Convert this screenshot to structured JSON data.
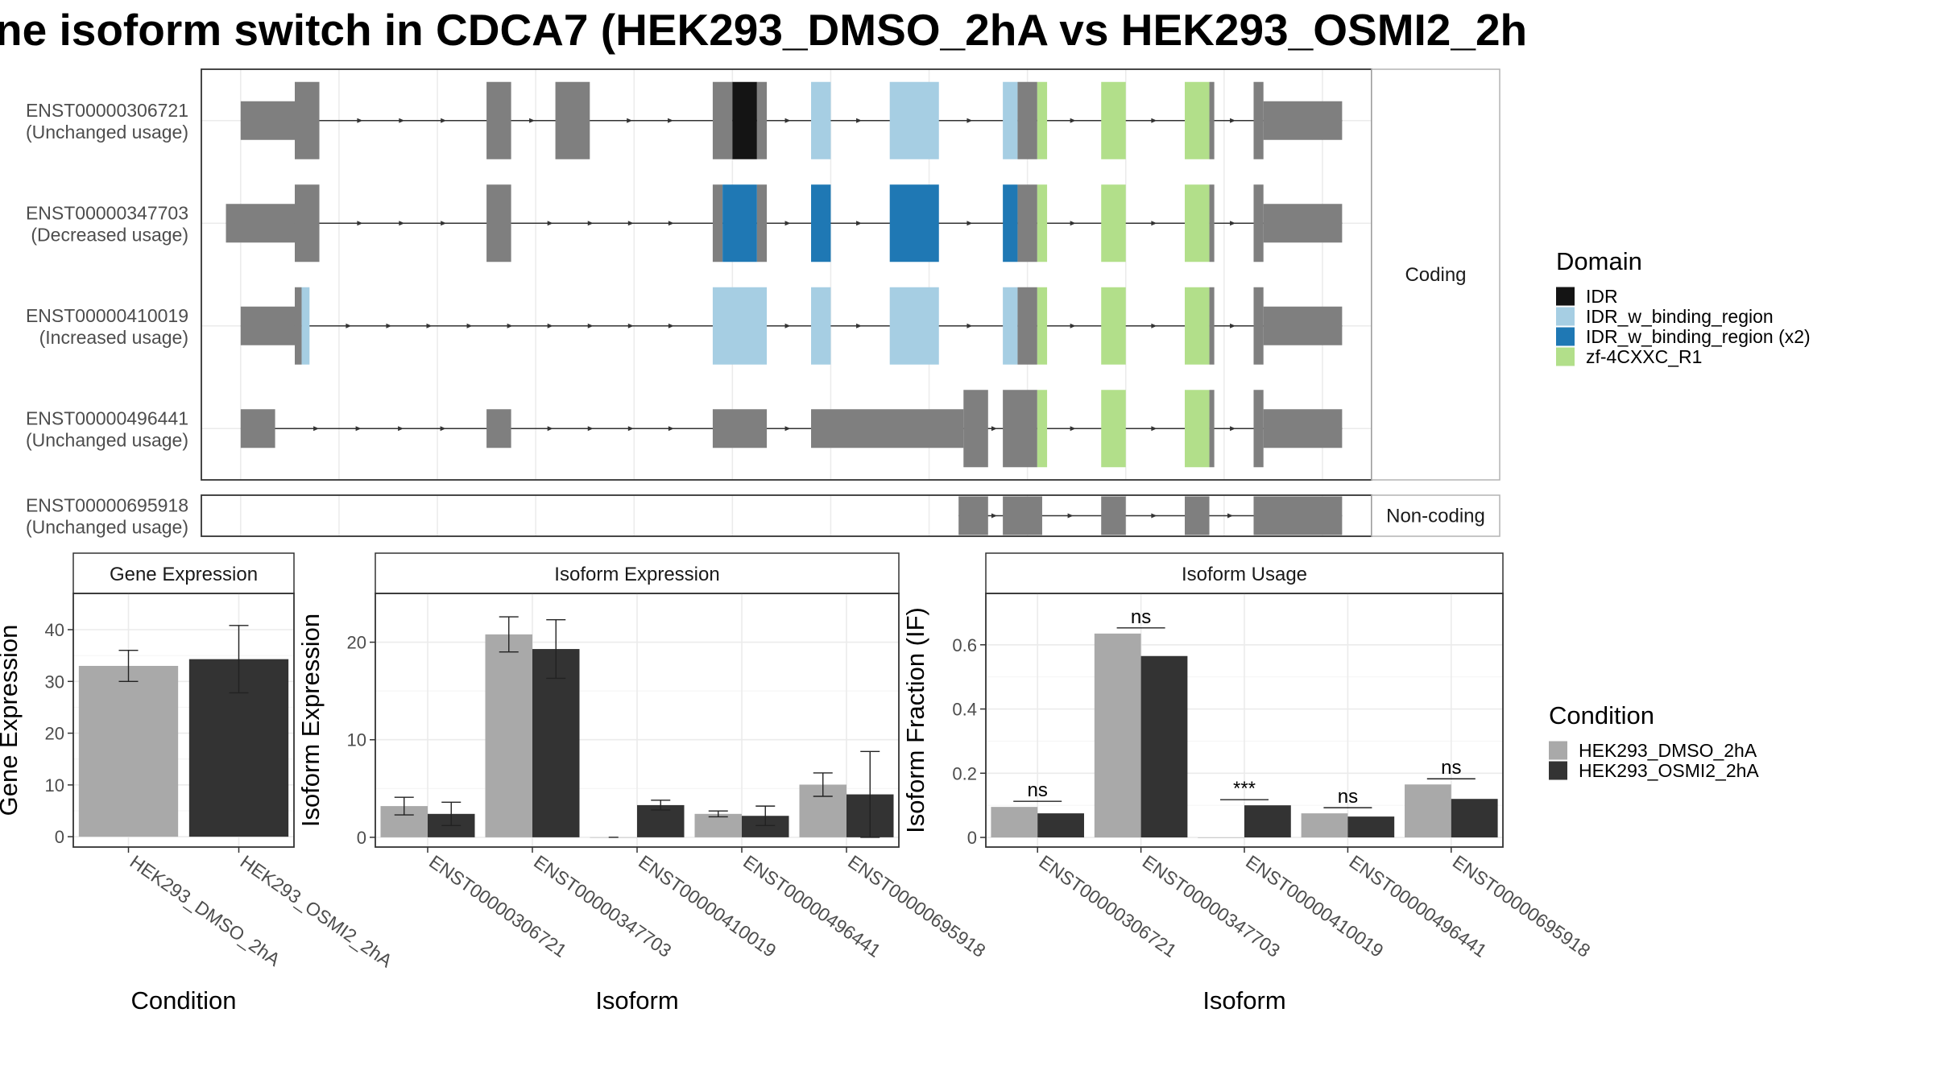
{
  "title": "ne isoform switch in CDCA7 (HEK293_DMSO_2hA vs HEK293_OSMI2_2h",
  "structure": {
    "coding_label": "Coding",
    "noncoding_label": "Non-coding",
    "transcripts": [
      {
        "id": "ENST00000306721",
        "usage": "(Unchanged usage)",
        "group": "coding",
        "exons": [
          {
            "s": 1.0,
            "e": 1.55,
            "thick": false
          },
          {
            "s": 1.55,
            "e": 1.8,
            "thick": true
          },
          {
            "s": 3.5,
            "e": 3.75,
            "thick": true
          },
          {
            "s": 4.2,
            "e": 4.55,
            "thick": true
          },
          {
            "s": 5.8,
            "e": 6.0,
            "thick": true,
            "domain": null
          },
          {
            "s": 6.0,
            "e": 6.25,
            "thick": true,
            "domain": "IDR"
          },
          {
            "s": 6.25,
            "e": 6.35,
            "thick": true
          },
          {
            "s": 6.8,
            "e": 7.0,
            "thick": true,
            "domain": "IDR_w_binding_region"
          },
          {
            "s": 7.6,
            "e": 8.1,
            "thick": true,
            "domain": "IDR_w_binding_region"
          },
          {
            "s": 8.75,
            "e": 8.9,
            "thick": true,
            "domain": "IDR_w_binding_region"
          },
          {
            "s": 8.9,
            "e": 9.1,
            "thick": true
          },
          {
            "s": 9.1,
            "e": 9.2,
            "thick": true,
            "domain": "zf-4CXXC_R1"
          },
          {
            "s": 9.75,
            "e": 10.0,
            "thick": true,
            "domain": "zf-4CXXC_R1"
          },
          {
            "s": 10.6,
            "e": 10.85,
            "thick": true,
            "domain": "zf-4CXXC_R1"
          },
          {
            "s": 10.85,
            "e": 10.9,
            "thick": true
          },
          {
            "s": 11.3,
            "e": 11.4,
            "thick": true
          },
          {
            "s": 11.4,
            "e": 12.2,
            "thick": false
          }
        ]
      },
      {
        "id": "ENST00000347703",
        "usage": "(Decreased usage)",
        "group": "coding",
        "exons": [
          {
            "s": 0.85,
            "e": 1.55,
            "thick": false
          },
          {
            "s": 1.55,
            "e": 1.8,
            "thick": true
          },
          {
            "s": 3.5,
            "e": 3.75,
            "thick": true
          },
          {
            "s": 5.8,
            "e": 5.9,
            "thick": true
          },
          {
            "s": 5.9,
            "e": 6.25,
            "thick": true,
            "domain": "IDR_w_binding_region (x2)"
          },
          {
            "s": 6.25,
            "e": 6.35,
            "thick": true
          },
          {
            "s": 6.8,
            "e": 7.0,
            "thick": true,
            "domain": "IDR_w_binding_region (x2)"
          },
          {
            "s": 7.6,
            "e": 8.1,
            "thick": true,
            "domain": "IDR_w_binding_region (x2)"
          },
          {
            "s": 8.75,
            "e": 8.9,
            "thick": true,
            "domain": "IDR_w_binding_region (x2)"
          },
          {
            "s": 8.9,
            "e": 9.1,
            "thick": true
          },
          {
            "s": 9.1,
            "e": 9.2,
            "thick": true,
            "domain": "zf-4CXXC_R1"
          },
          {
            "s": 9.75,
            "e": 10.0,
            "thick": true,
            "domain": "zf-4CXXC_R1"
          },
          {
            "s": 10.6,
            "e": 10.85,
            "thick": true,
            "domain": "zf-4CXXC_R1"
          },
          {
            "s": 10.85,
            "e": 10.9,
            "thick": true
          },
          {
            "s": 11.3,
            "e": 11.4,
            "thick": true
          },
          {
            "s": 11.4,
            "e": 12.2,
            "thick": false
          }
        ]
      },
      {
        "id": "ENST00000410019",
        "usage": "(Increased usage)",
        "group": "coding",
        "exons": [
          {
            "s": 1.0,
            "e": 1.55,
            "thick": false
          },
          {
            "s": 1.55,
            "e": 1.62,
            "thick": true
          },
          {
            "s": 1.62,
            "e": 1.7,
            "thick": true,
            "domain": "IDR_w_binding_region"
          },
          {
            "s": 5.8,
            "e": 6.35,
            "thick": true,
            "domain": "IDR_w_binding_region"
          },
          {
            "s": 6.8,
            "e": 7.0,
            "thick": true,
            "domain": "IDR_w_binding_region"
          },
          {
            "s": 7.6,
            "e": 8.1,
            "thick": true,
            "domain": "IDR_w_binding_region"
          },
          {
            "s": 8.75,
            "e": 8.9,
            "thick": true,
            "domain": "IDR_w_binding_region"
          },
          {
            "s": 8.9,
            "e": 9.1,
            "thick": true
          },
          {
            "s": 9.1,
            "e": 9.2,
            "thick": true,
            "domain": "zf-4CXXC_R1"
          },
          {
            "s": 9.75,
            "e": 10.0,
            "thick": true,
            "domain": "zf-4CXXC_R1"
          },
          {
            "s": 10.6,
            "e": 10.85,
            "thick": true,
            "domain": "zf-4CXXC_R1"
          },
          {
            "s": 10.85,
            "e": 10.9,
            "thick": true
          },
          {
            "s": 11.3,
            "e": 11.4,
            "thick": true
          },
          {
            "s": 11.4,
            "e": 12.2,
            "thick": false
          }
        ]
      },
      {
        "id": "ENST00000496441",
        "usage": "(Unchanged usage)",
        "group": "coding",
        "exons": [
          {
            "s": 1.0,
            "e": 1.35,
            "thick": false
          },
          {
            "s": 3.5,
            "e": 3.75,
            "thick": false
          },
          {
            "s": 5.8,
            "e": 6.35,
            "thick": false
          },
          {
            "s": 6.8,
            "e": 8.35,
            "thick": false
          },
          {
            "s": 8.35,
            "e": 8.6,
            "thick": true
          },
          {
            "s": 8.75,
            "e": 9.1,
            "thick": true
          },
          {
            "s": 9.1,
            "e": 9.2,
            "thick": true,
            "domain": "zf-4CXXC_R1"
          },
          {
            "s": 9.75,
            "e": 10.0,
            "thick": true,
            "domain": "zf-4CXXC_R1"
          },
          {
            "s": 10.6,
            "e": 10.85,
            "thick": true,
            "domain": "zf-4CXXC_R1"
          },
          {
            "s": 10.85,
            "e": 10.9,
            "thick": true
          },
          {
            "s": 11.3,
            "e": 11.4,
            "thick": true
          },
          {
            "s": 11.4,
            "e": 12.2,
            "thick": false
          }
        ]
      },
      {
        "id": "ENST00000695918",
        "usage": "(Unchanged usage)",
        "group": "noncoding",
        "exons": [
          {
            "s": 8.3,
            "e": 8.6,
            "thick": true
          },
          {
            "s": 8.75,
            "e": 9.15,
            "thick": true
          },
          {
            "s": 9.75,
            "e": 10.0,
            "thick": true
          },
          {
            "s": 10.6,
            "e": 10.85,
            "thick": true
          },
          {
            "s": 11.3,
            "e": 12.2,
            "thick": true
          }
        ]
      }
    ]
  },
  "domain_legend": {
    "title": "Domain",
    "items": [
      {
        "name": "IDR",
        "color": "#141414"
      },
      {
        "name": "IDR_w_binding_region",
        "color": "#a6cee3"
      },
      {
        "name": "IDR_w_binding_region (x2)",
        "color": "#1f78b4"
      },
      {
        "name": "zf-4CXXC_R1",
        "color": "#b2df8a"
      }
    ]
  },
  "condition_legend": {
    "title": "Condition",
    "items": [
      {
        "name": "HEK293_DMSO_2hA",
        "color": "#a9a9a9"
      },
      {
        "name": "HEK293_OSMI2_2hA",
        "color": "#333333"
      }
    ]
  },
  "chart_data": [
    {
      "type": "bar",
      "title": "Gene Expression",
      "xlabel": "Condition",
      "ylabel": "Gene Expression",
      "categories": [
        "HEK293_DMSO_2hA",
        "HEK293_OSMI2_2hA"
      ],
      "ylim": [
        -2,
        47
      ],
      "yticks": [
        0,
        10,
        20,
        30,
        40
      ],
      "series": [
        {
          "values": [
            33.0,
            34.3
          ],
          "errors": [
            3.0,
            6.5
          ]
        }
      ]
    },
    {
      "type": "bar",
      "title": "Isoform Expression",
      "xlabel": "Isoform",
      "ylabel": "Isoform Expression",
      "categories": [
        "ENST00000306721",
        "ENST00000347703",
        "ENST00000410019",
        "ENST00000496441",
        "ENST00000695918"
      ],
      "ylim": [
        -1,
        25
      ],
      "yticks": [
        0,
        10,
        20
      ],
      "series": [
        {
          "name": "HEK293_DMSO_2hA",
          "values": [
            3.2,
            20.8,
            0.0,
            2.4,
            5.4
          ],
          "errors": [
            0.9,
            1.8,
            0.0,
            0.3,
            1.2
          ]
        },
        {
          "name": "HEK293_OSMI2_2hA",
          "values": [
            2.4,
            19.3,
            3.3,
            2.2,
            4.4
          ],
          "errors": [
            1.2,
            3.0,
            0.5,
            1.0,
            4.4
          ]
        }
      ]
    },
    {
      "type": "bar",
      "title": "Isoform Usage",
      "xlabel": "Isoform",
      "ylabel": "Isoform Fraction (IF)",
      "categories": [
        "ENST00000306721",
        "ENST00000347703",
        "ENST00000410019",
        "ENST00000496441",
        "ENST00000695918"
      ],
      "ylim": [
        -0.03,
        0.76
      ],
      "yticks": [
        0.0,
        0.2,
        0.4,
        0.6
      ],
      "significance": [
        "ns",
        "ns",
        "***",
        "ns",
        "ns"
      ],
      "series": [
        {
          "name": "HEK293_DMSO_2hA",
          "values": [
            0.095,
            0.635,
            0.0,
            0.075,
            0.165
          ]
        },
        {
          "name": "HEK293_OSMI2_2hA",
          "values": [
            0.075,
            0.565,
            0.1,
            0.065,
            0.12
          ]
        }
      ]
    }
  ]
}
